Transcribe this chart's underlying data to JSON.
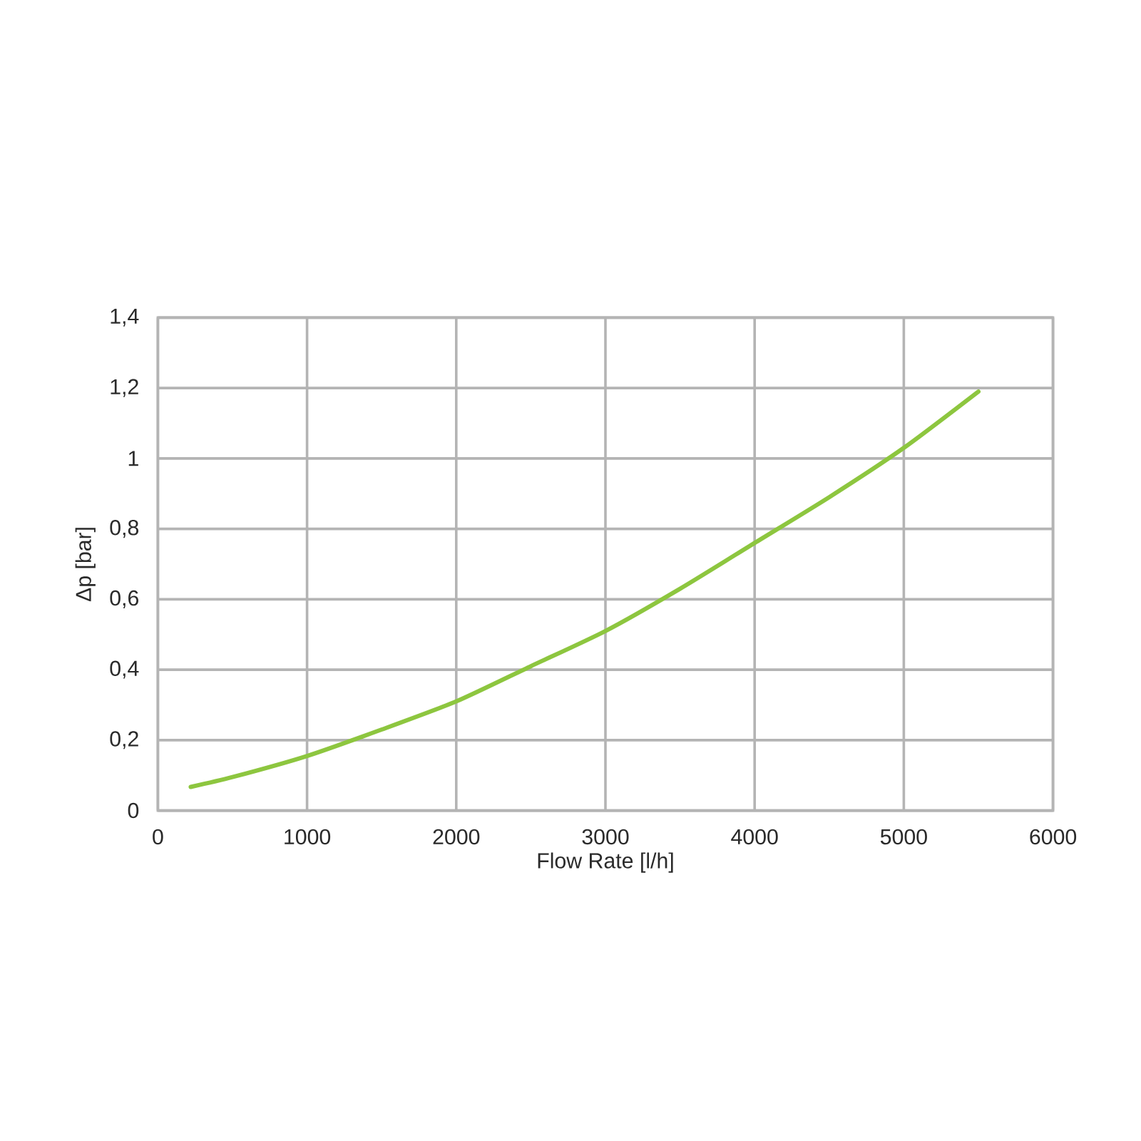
{
  "chart_data": {
    "type": "line",
    "xlabel": "Flow Rate [l/h]",
    "ylabel": "Δp [bar]",
    "x": [
      220,
      500,
      1000,
      1500,
      2000,
      2500,
      3000,
      3500,
      4000,
      4500,
      5000,
      5500
    ],
    "series": [
      {
        "color": "#8dc63f",
        "values": [
          0.067,
          0.095,
          0.155,
          0.23,
          0.31,
          0.41,
          0.51,
          0.63,
          0.76,
          0.89,
          1.03,
          1.19
        ]
      }
    ],
    "xlim": [
      0,
      6000
    ],
    "ylim": [
      0,
      1.4
    ],
    "xticks": [
      0,
      1000,
      2000,
      3000,
      4000,
      5000,
      6000
    ],
    "yticks": [
      0,
      {
        "value": 0.2,
        "label": "0,2"
      },
      {
        "value": 0.4,
        "label": "0,4"
      },
      {
        "value": 0.6,
        "label": "0,6"
      },
      {
        "value": 0.8,
        "label": "0,8"
      },
      1,
      {
        "value": 1.2,
        "label": "1,2"
      },
      {
        "value": 1.4,
        "label": "1,4"
      }
    ],
    "grid": true,
    "marker": "none"
  }
}
